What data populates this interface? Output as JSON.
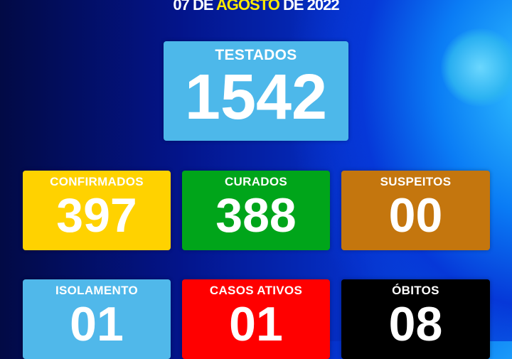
{
  "header": {
    "date_prefix": "07 DE",
    "month": "AGOSTO",
    "date_suffix": "DE 2022"
  },
  "colors": {
    "testados": "#4db8ea",
    "confirmados": "#ffd200",
    "curados": "#00a51a",
    "suspeitos": "#c4760e",
    "isolamento": "#50b8ea",
    "casos_ativos": "#ff0000",
    "obitos": "#000000",
    "highlight": "#ffea00"
  },
  "stats": {
    "testados": {
      "label": "TESTADOS",
      "value": "1542"
    },
    "confirmados": {
      "label": "CONFIRMADOS",
      "value": "397"
    },
    "curados": {
      "label": "CURADOS",
      "value": "388"
    },
    "suspeitos": {
      "label": "SUSPEITOS",
      "value": "00"
    },
    "isolamento": {
      "label": "ISOLAMENTO",
      "value": "01"
    },
    "casos_ativos": {
      "label": "CASOS ATIVOS",
      "value": "01"
    },
    "obitos": {
      "label": "ÓBITOS",
      "value": "08"
    }
  }
}
